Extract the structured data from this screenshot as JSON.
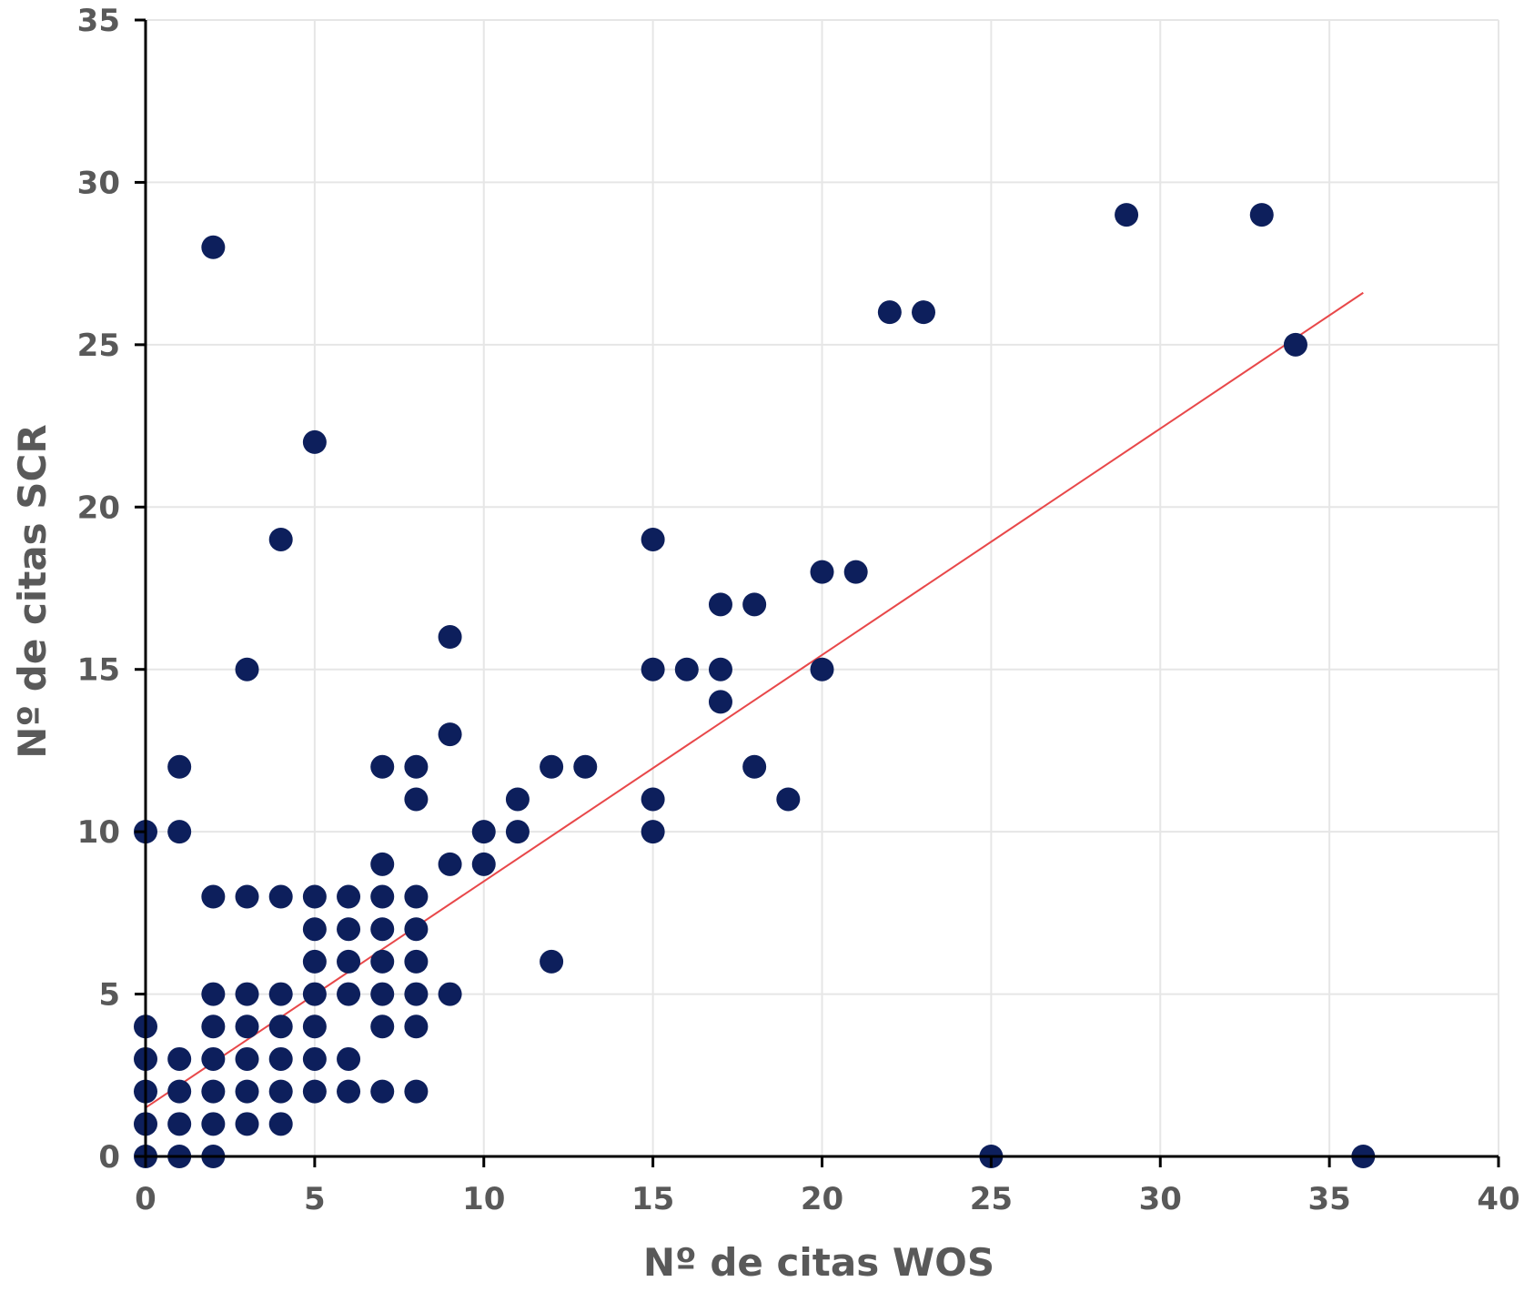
{
  "chart_data": {
    "type": "scatter",
    "title": "",
    "xlabel": "Nº de citas WOS",
    "ylabel": "Nº de citas  SCR",
    "xlim": [
      0,
      40
    ],
    "ylim": [
      0,
      35
    ],
    "xticks": [
      "0",
      "5",
      "10",
      "15",
      "20",
      "25",
      "30",
      "35",
      "40"
    ],
    "yticks": [
      "0",
      "5",
      "10",
      "15",
      "20",
      "25",
      "30",
      "35"
    ],
    "grid": true,
    "legend": "none",
    "colors": {
      "points": "#0d1f5c",
      "trendline": "#e8484a",
      "grid": "#e6e6e6",
      "axis": "#000000",
      "text": "#595959"
    },
    "trendline": {
      "x": [
        0,
        36
      ],
      "y": [
        1.5,
        26.6
      ]
    },
    "points": [
      [
        0,
        0
      ],
      [
        0,
        1
      ],
      [
        0,
        2
      ],
      [
        0,
        3
      ],
      [
        0,
        4
      ],
      [
        0,
        10
      ],
      [
        1,
        0
      ],
      [
        1,
        1
      ],
      [
        1,
        2
      ],
      [
        1,
        3
      ],
      [
        1,
        10
      ],
      [
        1,
        12
      ],
      [
        2,
        0
      ],
      [
        2,
        1
      ],
      [
        2,
        2
      ],
      [
        2,
        3
      ],
      [
        2,
        4
      ],
      [
        2,
        5
      ],
      [
        2,
        8
      ],
      [
        2,
        28
      ],
      [
        3,
        1
      ],
      [
        3,
        2
      ],
      [
        3,
        3
      ],
      [
        3,
        4
      ],
      [
        3,
        5
      ],
      [
        3,
        8
      ],
      [
        3,
        15
      ],
      [
        4,
        1
      ],
      [
        4,
        2
      ],
      [
        4,
        3
      ],
      [
        4,
        4
      ],
      [
        4,
        5
      ],
      [
        4,
        8
      ],
      [
        4,
        19
      ],
      [
        5,
        2
      ],
      [
        5,
        3
      ],
      [
        5,
        4
      ],
      [
        5,
        5
      ],
      [
        5,
        6
      ],
      [
        5,
        7
      ],
      [
        5,
        8
      ],
      [
        5,
        22
      ],
      [
        6,
        2
      ],
      [
        6,
        3
      ],
      [
        6,
        5
      ],
      [
        6,
        6
      ],
      [
        6,
        7
      ],
      [
        6,
        8
      ],
      [
        7,
        2
      ],
      [
        7,
        4
      ],
      [
        7,
        5
      ],
      [
        7,
        6
      ],
      [
        7,
        7
      ],
      [
        7,
        8
      ],
      [
        7,
        9
      ],
      [
        7,
        12
      ],
      [
        8,
        2
      ],
      [
        8,
        4
      ],
      [
        8,
        5
      ],
      [
        8,
        6
      ],
      [
        8,
        7
      ],
      [
        8,
        8
      ],
      [
        8,
        11
      ],
      [
        8,
        12
      ],
      [
        9,
        5
      ],
      [
        9,
        9
      ],
      [
        9,
        13
      ],
      [
        9,
        16
      ],
      [
        10,
        9
      ],
      [
        10,
        10
      ],
      [
        11,
        10
      ],
      [
        11,
        11
      ],
      [
        12,
        6
      ],
      [
        12,
        12
      ],
      [
        13,
        12
      ],
      [
        15,
        10
      ],
      [
        15,
        11
      ],
      [
        15,
        15
      ],
      [
        15,
        19
      ],
      [
        16,
        15
      ],
      [
        17,
        14
      ],
      [
        17,
        15
      ],
      [
        17,
        17
      ],
      [
        18,
        12
      ],
      [
        18,
        17
      ],
      [
        19,
        11
      ],
      [
        20,
        15
      ],
      [
        20,
        18
      ],
      [
        21,
        18
      ],
      [
        22,
        26
      ],
      [
        23,
        26
      ],
      [
        25,
        0
      ],
      [
        29,
        29
      ],
      [
        33,
        29
      ],
      [
        34,
        25
      ],
      [
        36,
        0
      ]
    ]
  }
}
